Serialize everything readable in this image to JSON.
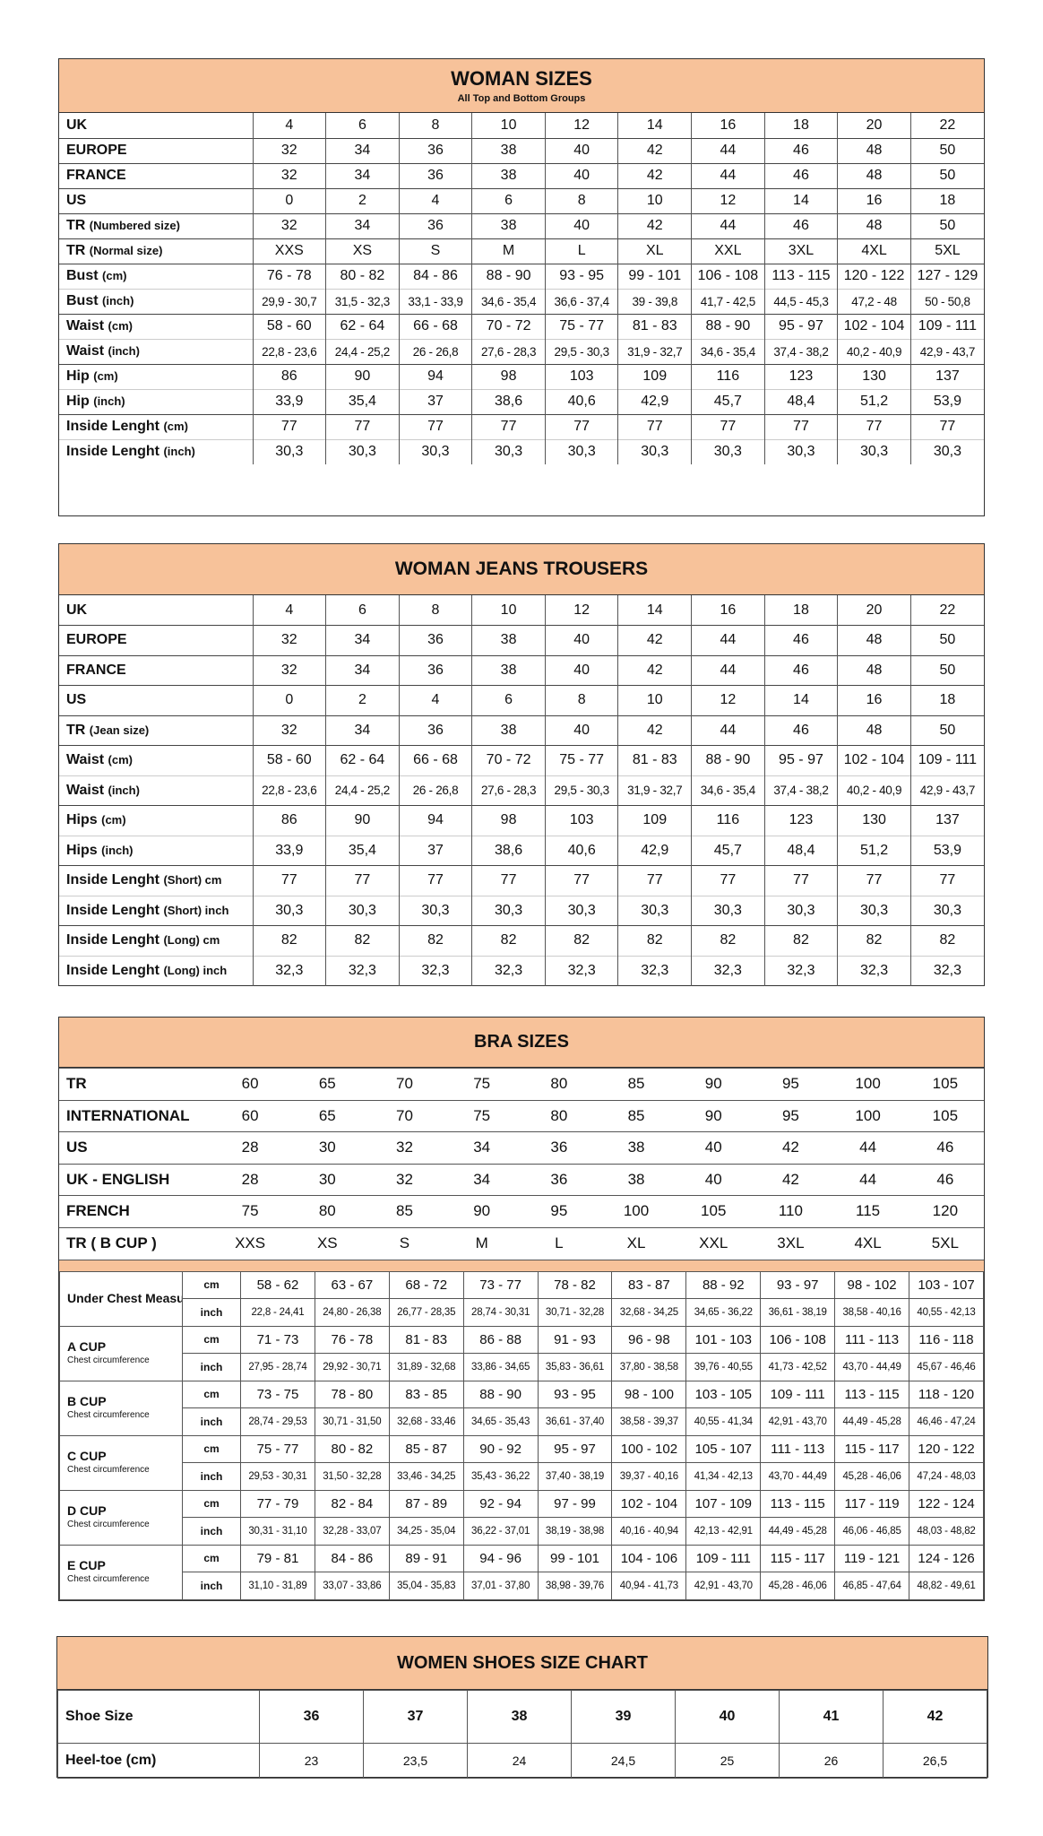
{
  "colors": {
    "header_bg": "#f7c29a",
    "border": "#333333"
  },
  "woman_sizes": {
    "title": "WOMAN SIZES",
    "subtitle": "All Top and Bottom Groups",
    "rows": [
      {
        "label": "UK",
        "unit": "",
        "values": [
          "4",
          "6",
          "8",
          "10",
          "12",
          "14",
          "16",
          "18",
          "20",
          "22"
        ]
      },
      {
        "label": "EUROPE",
        "unit": "",
        "values": [
          "32",
          "34",
          "36",
          "38",
          "40",
          "42",
          "44",
          "46",
          "48",
          "50"
        ]
      },
      {
        "label": "FRANCE",
        "unit": "",
        "values": [
          "32",
          "34",
          "36",
          "38",
          "40",
          "42",
          "44",
          "46",
          "48",
          "50"
        ]
      },
      {
        "label": "US",
        "unit": "",
        "values": [
          "0",
          "2",
          "4",
          "6",
          "8",
          "10",
          "12",
          "14",
          "16",
          "18"
        ]
      },
      {
        "label": "TR",
        "unit": "(Numbered size)",
        "values": [
          "32",
          "34",
          "36",
          "38",
          "40",
          "42",
          "44",
          "46",
          "48",
          "50"
        ]
      },
      {
        "label": "TR",
        "unit": "(Normal size)",
        "values": [
          "XXS",
          "XS",
          "S",
          "M",
          "L",
          "XL",
          "XXL",
          "3XL",
          "4XL",
          "5XL"
        ]
      },
      {
        "label": "Bust",
        "unit": "(cm)",
        "values": [
          "76 - 78",
          "80 - 82",
          "84 - 86",
          "88 - 90",
          "93 - 95",
          "99 - 101",
          "106 - 108",
          "113 - 115",
          "120 - 122",
          "127 - 129"
        ]
      },
      {
        "label": "Bust",
        "unit": "(inch)",
        "values": [
          "29,9 - 30,7",
          "31,5 - 32,3",
          "33,1 - 33,9",
          "34,6 - 35,4",
          "36,6 - 37,4",
          "39 - 39,8",
          "41,7 - 42,5",
          "44,5 - 45,3",
          "47,2 - 48",
          "50 - 50,8"
        ]
      },
      {
        "label": "Waist",
        "unit": "(cm)",
        "values": [
          "58 - 60",
          "62 - 64",
          "66 - 68",
          "70 - 72",
          "75 - 77",
          "81 - 83",
          "88 - 90",
          "95 - 97",
          "102 - 104",
          "109 - 111"
        ]
      },
      {
        "label": "Waist",
        "unit": "(inch)",
        "values": [
          "22,8 - 23,6",
          "24,4 - 25,2",
          "26 - 26,8",
          "27,6 - 28,3",
          "29,5 - 30,3",
          "31,9 - 32,7",
          "34,6 - 35,4",
          "37,4 - 38,2",
          "40,2 - 40,9",
          "42,9 - 43,7"
        ]
      },
      {
        "label": "Hip",
        "unit": "(cm)",
        "values": [
          "86",
          "90",
          "94",
          "98",
          "103",
          "109",
          "116",
          "123",
          "130",
          "137"
        ]
      },
      {
        "label": "Hip",
        "unit": "(inch)",
        "values": [
          "33,9",
          "35,4",
          "37",
          "38,6",
          "40,6",
          "42,9",
          "45,7",
          "48,4",
          "51,2",
          "53,9"
        ]
      },
      {
        "label": "Inside Lenght",
        "unit": "(cm)",
        "values": [
          "77",
          "77",
          "77",
          "77",
          "77",
          "77",
          "77",
          "77",
          "77",
          "77"
        ]
      },
      {
        "label": "Inside Lenght",
        "unit": "(inch)",
        "values": [
          "30,3",
          "30,3",
          "30,3",
          "30,3",
          "30,3",
          "30,3",
          "30,3",
          "30,3",
          "30,3",
          "30,3"
        ]
      }
    ]
  },
  "jeans": {
    "title": "WOMAN JEANS TROUSERS",
    "rows": [
      {
        "label": "UK",
        "unit": "",
        "values": [
          "4",
          "6",
          "8",
          "10",
          "12",
          "14",
          "16",
          "18",
          "20",
          "22"
        ]
      },
      {
        "label": "EUROPE",
        "unit": "",
        "values": [
          "32",
          "34",
          "36",
          "38",
          "40",
          "42",
          "44",
          "46",
          "48",
          "50"
        ]
      },
      {
        "label": "FRANCE",
        "unit": "",
        "values": [
          "32",
          "34",
          "36",
          "38",
          "40",
          "42",
          "44",
          "46",
          "48",
          "50"
        ]
      },
      {
        "label": "US",
        "unit": "",
        "values": [
          "0",
          "2",
          "4",
          "6",
          "8",
          "10",
          "12",
          "14",
          "16",
          "18"
        ]
      },
      {
        "label": "TR",
        "unit": "(Jean size)",
        "values": [
          "32",
          "34",
          "36",
          "38",
          "40",
          "42",
          "44",
          "46",
          "48",
          "50"
        ]
      },
      {
        "label": "Waist",
        "unit": "(cm)",
        "values": [
          "58 - 60",
          "62 - 64",
          "66 - 68",
          "70 - 72",
          "75 - 77",
          "81 - 83",
          "88 - 90",
          "95 - 97",
          "102 - 104",
          "109 - 111"
        ]
      },
      {
        "label": "Waist",
        "unit": "(inch)",
        "values": [
          "22,8 - 23,6",
          "24,4 - 25,2",
          "26 - 26,8",
          "27,6 - 28,3",
          "29,5 - 30,3",
          "31,9 - 32,7",
          "34,6 - 35,4",
          "37,4 - 38,2",
          "40,2 - 40,9",
          "42,9 - 43,7"
        ]
      },
      {
        "label": "Hips",
        "unit": "(cm)",
        "values": [
          "86",
          "90",
          "94",
          "98",
          "103",
          "109",
          "116",
          "123",
          "130",
          "137"
        ]
      },
      {
        "label": "Hips",
        "unit": "(inch)",
        "values": [
          "33,9",
          "35,4",
          "37",
          "38,6",
          "40,6",
          "42,9",
          "45,7",
          "48,4",
          "51,2",
          "53,9"
        ]
      },
      {
        "label": "Inside Lenght",
        "unit": "(Short) cm",
        "values": [
          "77",
          "77",
          "77",
          "77",
          "77",
          "77",
          "77",
          "77",
          "77",
          "77"
        ]
      },
      {
        "label": "Inside Lenght",
        "unit": "(Short) inch",
        "values": [
          "30,3",
          "30,3",
          "30,3",
          "30,3",
          "30,3",
          "30,3",
          "30,3",
          "30,3",
          "30,3",
          "30,3"
        ]
      },
      {
        "label": "Inside Lenght",
        "unit": "(Long) cm",
        "values": [
          "82",
          "82",
          "82",
          "82",
          "82",
          "82",
          "82",
          "82",
          "82",
          "82"
        ]
      },
      {
        "label": "Inside Lenght",
        "unit": "(Long) inch",
        "values": [
          "32,3",
          "32,3",
          "32,3",
          "32,3",
          "32,3",
          "32,3",
          "32,3",
          "32,3",
          "32,3",
          "32,3"
        ]
      }
    ]
  },
  "bra": {
    "title": "BRA SIZES",
    "rows": [
      {
        "label": "TR",
        "values": [
          "60",
          "65",
          "70",
          "75",
          "80",
          "85",
          "90",
          "95",
          "100",
          "105"
        ]
      },
      {
        "label": "INTERNATIONAL",
        "values": [
          "60",
          "65",
          "70",
          "75",
          "80",
          "85",
          "90",
          "95",
          "100",
          "105"
        ]
      },
      {
        "label": "US",
        "values": [
          "28",
          "30",
          "32",
          "34",
          "36",
          "38",
          "40",
          "42",
          "44",
          "46"
        ]
      },
      {
        "label": "UK - ENGLISH",
        "values": [
          "28",
          "30",
          "32",
          "34",
          "36",
          "38",
          "40",
          "42",
          "44",
          "46"
        ]
      },
      {
        "label": "FRENCH",
        "values": [
          "75",
          "80",
          "85",
          "90",
          "95",
          "100",
          "105",
          "110",
          "115",
          "120"
        ]
      },
      {
        "label": "TR ( B CUP )",
        "values": [
          "XXS",
          "XS",
          "S",
          "M",
          "L",
          "XL",
          "XXL",
          "3XL",
          "4XL",
          "5XL"
        ]
      }
    ],
    "cups": [
      {
        "label": "Under Chest Measurement",
        "sub": "",
        "cm_unit": "cm",
        "inch_unit": "inch",
        "cm": [
          "58 - 62",
          "63 - 67",
          "68 - 72",
          "73 - 77",
          "78 - 82",
          "83 - 87",
          "88 - 92",
          "93 - 97",
          "98 - 102",
          "103 - 107"
        ],
        "inch": [
          "22,8 - 24,41",
          "24,80 - 26,38",
          "26,77 - 28,35",
          "28,74 - 30,31",
          "30,71 - 32,28",
          "32,68 - 34,25",
          "34,65 - 36,22",
          "36,61 - 38,19",
          "38,58 - 40,16",
          "40,55 - 42,13"
        ]
      },
      {
        "label": "A CUP",
        "sub": "Chest circumference",
        "cm_unit": "cm",
        "inch_unit": "inch",
        "cm": [
          "71 - 73",
          "76 - 78",
          "81 - 83",
          "86 - 88",
          "91 - 93",
          "96 - 98",
          "101 - 103",
          "106 - 108",
          "111 - 113",
          "116 - 118"
        ],
        "inch": [
          "27,95 - 28,74",
          "29,92 - 30,71",
          "31,89 - 32,68",
          "33,86 - 34,65",
          "35,83 - 36,61",
          "37,80 - 38,58",
          "39,76 - 40,55",
          "41,73 - 42,52",
          "43,70 - 44,49",
          "45,67 - 46,46"
        ]
      },
      {
        "label": "B CUP",
        "sub": "Chest circumference",
        "cm_unit": "cm",
        "inch_unit": "inch",
        "cm": [
          "73 - 75",
          "78 - 80",
          "83 - 85",
          "88 - 90",
          "93 - 95",
          "98 - 100",
          "103 - 105",
          "109 - 111",
          "113 - 115",
          "118 - 120"
        ],
        "inch": [
          "28,74 - 29,53",
          "30,71 - 31,50",
          "32,68 - 33,46",
          "34,65 - 35,43",
          "36,61 - 37,40",
          "38,58 - 39,37",
          "40,55 - 41,34",
          "42,91 - 43,70",
          "44,49 - 45,28",
          "46,46 - 47,24"
        ]
      },
      {
        "label": "C CUP",
        "sub": "Chest circumference",
        "cm_unit": "cm",
        "inch_unit": "inch",
        "cm": [
          "75 - 77",
          "80 - 82",
          "85 - 87",
          "90 - 92",
          "95 - 97",
          "100 - 102",
          "105 - 107",
          "111 - 113",
          "115 - 117",
          "120 - 122"
        ],
        "inch": [
          "29,53 - 30,31",
          "31,50 - 32,28",
          "33,46 - 34,25",
          "35,43 - 36,22",
          "37,40 - 38,19",
          "39,37 - 40,16",
          "41,34 - 42,13",
          "43,70 - 44,49",
          "45,28 - 46,06",
          "47,24 - 48,03"
        ]
      },
      {
        "label": "D CUP",
        "sub": "Chest circumference",
        "cm_unit": "cm",
        "inch_unit": "inch",
        "cm": [
          "77 - 79",
          "82 - 84",
          "87 - 89",
          "92 - 94",
          "97 - 99",
          "102 - 104",
          "107 - 109",
          "113 - 115",
          "117 - 119",
          "122 - 124"
        ],
        "inch": [
          "30,31 - 31,10",
          "32,28 - 33,07",
          "34,25 - 35,04",
          "36,22 - 37,01",
          "38,19 - 38,98",
          "40,16 - 40,94",
          "42,13 - 42,91",
          "44,49 - 45,28",
          "46,06 - 46,85",
          "48,03 - 48,82"
        ]
      },
      {
        "label": "E CUP",
        "sub": "Chest circumference",
        "cm_unit": "cm",
        "inch_unit": "inch",
        "cm": [
          "79 - 81",
          "84 - 86",
          "89 - 91",
          "94 - 96",
          "99 - 101",
          "104 - 106",
          "109 - 111",
          "115 - 117",
          "119 - 121",
          "124 - 126"
        ],
        "inch": [
          "31,10 - 31,89",
          "33,07 - 33,86",
          "35,04 - 35,83",
          "37,01 - 37,80",
          "38,98 - 39,76",
          "40,94 - 41,73",
          "42,91 - 43,70",
          "45,28 - 46,06",
          "46,85 - 47,64",
          "48,82 - 49,61"
        ]
      }
    ]
  },
  "shoes": {
    "title": "WOMEN SHOES SIZE CHART",
    "rows": [
      {
        "label": "Shoe Size",
        "values": [
          "36",
          "37",
          "38",
          "39",
          "40",
          "41",
          "42"
        ]
      },
      {
        "label": "Heel-toe (cm)",
        "values": [
          "23",
          "23,5",
          "24",
          "24,5",
          "25",
          "26",
          "26,5"
        ]
      }
    ]
  }
}
